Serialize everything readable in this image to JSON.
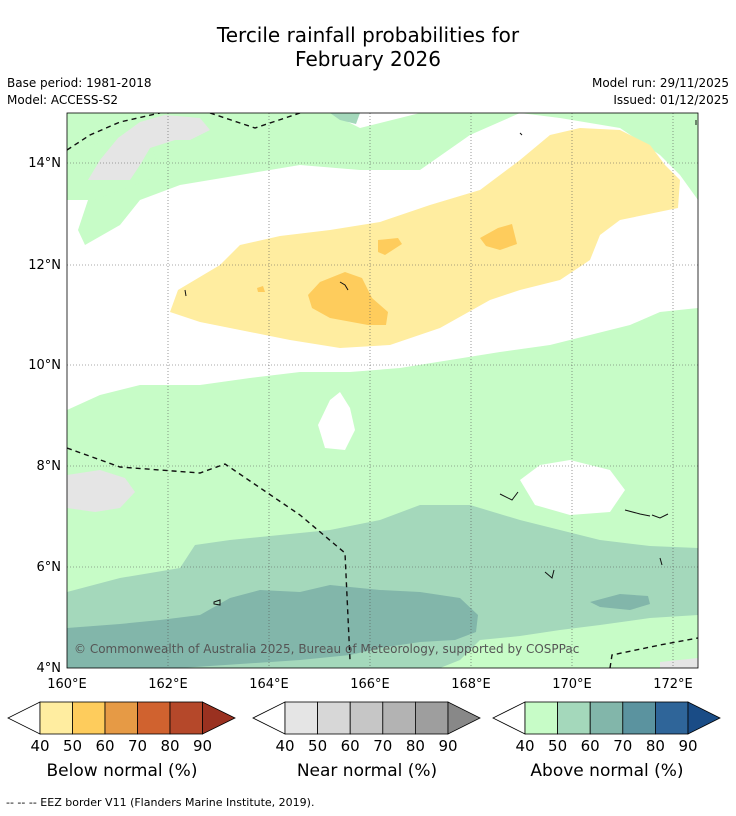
{
  "header": {
    "title_line1": "Tercile rainfall probabilities for",
    "title_line2": "February 2026",
    "base_period": "Base period: 1981-2018",
    "model": "Model: ACCESS-S2",
    "model_run": "Model run: 29/11/2025",
    "issued": "Issued: 01/12/2025"
  },
  "map": {
    "lat_labels": [
      "4°N",
      "6°N",
      "8°N",
      "10°N",
      "12°N",
      "14°N"
    ],
    "lon_labels": [
      "160°E",
      "162°E",
      "164°E",
      "166°E",
      "168°E",
      "170°E",
      "172°E"
    ],
    "copyright": "© Commonwealth of Australia 2025, Bureau of Meteorology, supported by COSPPac"
  },
  "colorbars": [
    {
      "label": "Below normal (%)",
      "ticks": [
        "40",
        "50",
        "60",
        "70",
        "80",
        "90"
      ],
      "colors": [
        "#ffffff",
        "#ffeda0",
        "#fecc5c",
        "#e69a45",
        "#d0622f",
        "#b5482a",
        "#9a3120"
      ]
    },
    {
      "label": "Near normal (%)",
      "ticks": [
        "40",
        "50",
        "60",
        "70",
        "80",
        "90"
      ],
      "colors": [
        "#ffffff",
        "#e5e5e5",
        "#d7d7d7",
        "#c6c6c6",
        "#b3b3b3",
        "#9e9e9e",
        "#888888"
      ]
    },
    {
      "label": "Above normal (%)",
      "ticks": [
        "40",
        "50",
        "60",
        "70",
        "80",
        "90"
      ],
      "colors": [
        "#ffffff",
        "#c7fcc7",
        "#a4d8bb",
        "#82b6aa",
        "#5b939f",
        "#2f6599",
        "#1a4c86"
      ]
    }
  ],
  "footnote": "--  --  -- EEZ border V11 (Flanders Marine Institute, 2019)."
}
